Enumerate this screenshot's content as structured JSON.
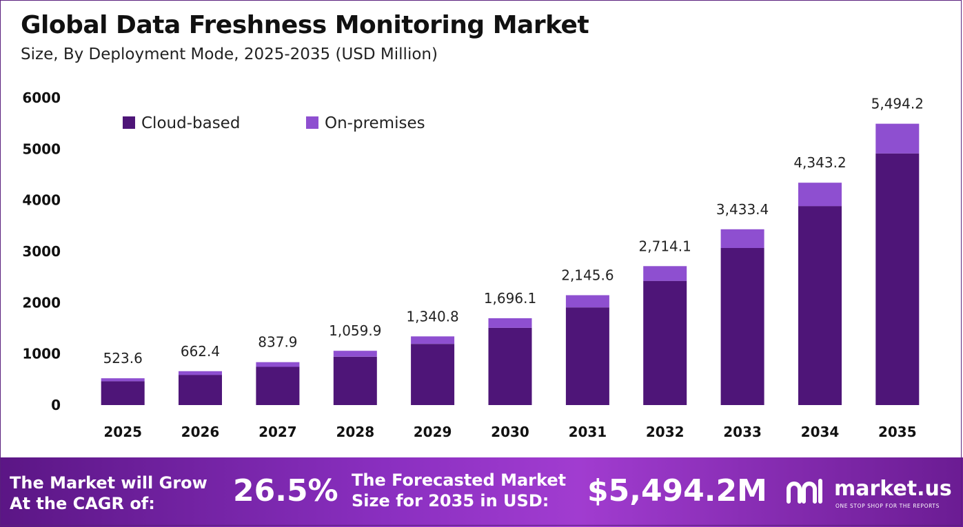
{
  "title": "Global Data Freshness Monitoring Market",
  "subtitle": "Size, By Deployment Mode, 2025-2035 (USD Million)",
  "colors": {
    "cloud": "#4e1578",
    "onprem": "#8e4fd0",
    "axis_text": "#111111",
    "banner": "#8a2fc0"
  },
  "chart_data": {
    "type": "bar",
    "stacked": true,
    "categories": [
      "2025",
      "2026",
      "2027",
      "2028",
      "2029",
      "2030",
      "2031",
      "2032",
      "2033",
      "2034",
      "2035"
    ],
    "series": [
      {
        "name": "Cloud-based",
        "values": [
          466,
          590,
          746,
          945,
          1195,
          1508,
          1907,
          2425,
          3067,
          3886,
          4914
        ]
      },
      {
        "name": "On-premises",
        "values": [
          57.6,
          72.4,
          91.9,
          114.9,
          145.8,
          188.1,
          238.6,
          289.1,
          366.4,
          457.2,
          580.2
        ]
      }
    ],
    "totals": [
      523.6,
      662.4,
      837.9,
      1059.9,
      1340.8,
      1696.1,
      2145.6,
      2714.1,
      3433.4,
      4343.2,
      5494.2
    ],
    "total_labels": [
      "523.6",
      "662.4",
      "837.9",
      "1,059.9",
      "1,340.8",
      "1,696.1",
      "2,145.6",
      "2,714.1",
      "3,433.4",
      "4,343.2",
      "5,494.2"
    ],
    "yticks": [
      "0",
      "1000",
      "2000",
      "3000",
      "4000",
      "5000",
      "6000"
    ],
    "ylim": [
      0,
      6000
    ],
    "grid": false,
    "legend": "top-left"
  },
  "banner": {
    "cagr_text_line1": "The Market will Grow",
    "cagr_text_line2": "At the CAGR of:",
    "cagr_value": "26.5%",
    "forecast_text_line1": "The Forecasted Market",
    "forecast_text_line2": "Size for 2035 in USD:",
    "forecast_value": "$5,494.2M",
    "logo_text": "market.us",
    "logo_tagline": "ONE STOP SHOP FOR THE REPORTS"
  }
}
